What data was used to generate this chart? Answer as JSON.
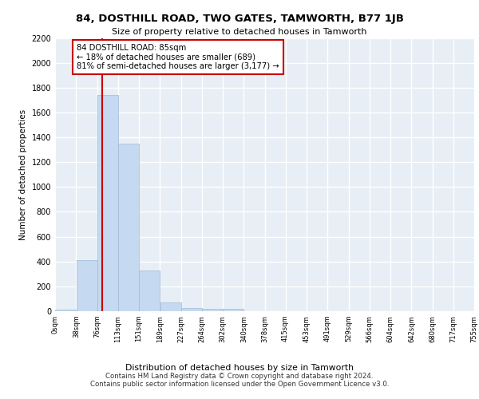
{
  "title": "84, DOSTHILL ROAD, TWO GATES, TAMWORTH, B77 1JB",
  "subtitle": "Size of property relative to detached houses in Tamworth",
  "xlabel": "Distribution of detached houses by size in Tamworth",
  "ylabel": "Number of detached properties",
  "bar_color": "#c5d9f0",
  "bar_edge_color": "#a0b8d8",
  "background_color": "#e8eef5",
  "grid_color": "#ffffff",
  "bin_edges": [
    0,
    38,
    76,
    113,
    151,
    189,
    227,
    264,
    302,
    340,
    378,
    415,
    453,
    491,
    529,
    566,
    604,
    642,
    680,
    717,
    755
  ],
  "bin_labels": [
    "0sqm",
    "38sqm",
    "76sqm",
    "113sqm",
    "151sqm",
    "189sqm",
    "227sqm",
    "264sqm",
    "302sqm",
    "340sqm",
    "378sqm",
    "415sqm",
    "453sqm",
    "491sqm",
    "529sqm",
    "566sqm",
    "604sqm",
    "642sqm",
    "680sqm",
    "717sqm",
    "755sqm"
  ],
  "bar_heights": [
    15,
    410,
    1740,
    1350,
    330,
    70,
    25,
    20,
    20,
    0,
    0,
    0,
    0,
    0,
    0,
    0,
    0,
    0,
    0,
    0
  ],
  "property_size": 85,
  "property_label": "84 DOSTHILL ROAD: 85sqm",
  "pct_smaller": "18% of detached houses are smaller (689)",
  "pct_larger": "81% of semi-detached houses are larger (3,177)",
  "annotation_box_color": "#ffffff",
  "annotation_box_edge": "#cc0000",
  "vline_color": "#cc0000",
  "ylim": [
    0,
    2200
  ],
  "yticks": [
    0,
    200,
    400,
    600,
    800,
    1000,
    1200,
    1400,
    1600,
    1800,
    2000,
    2200
  ],
  "footer1": "Contains HM Land Registry data © Crown copyright and database right 2024.",
  "footer2": "Contains public sector information licensed under the Open Government Licence v3.0."
}
